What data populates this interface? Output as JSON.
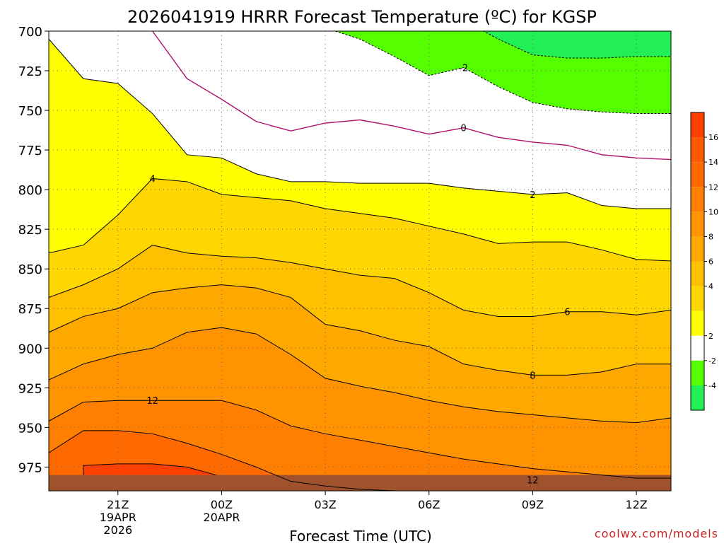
{
  "chart_data": {
    "type": "contour",
    "title": "2026041919 HRRR Forecast Temperature (ºC) for KGSP",
    "xlabel": "Forecast Time (UTC)",
    "ylabel": "",
    "watermark": "coolwx.com/models",
    "x_ticks": [
      {
        "label": "21Z",
        "sub": [
          "19APR",
          "2026"
        ],
        "hour": 2
      },
      {
        "label": "00Z",
        "sub": [
          "20APR"
        ],
        "hour": 5
      },
      {
        "label": "03Z",
        "sub": [],
        "hour": 8
      },
      {
        "label": "06Z",
        "sub": [],
        "hour": 11
      },
      {
        "label": "09Z",
        "sub": [],
        "hour": 14
      },
      {
        "label": "12Z",
        "sub": [],
        "hour": 17
      }
    ],
    "x_range_hours": [
      0,
      18
    ],
    "y_range_hpa": [
      700,
      990
    ],
    "y_inverted": true,
    "y_ticks": [
      700,
      725,
      750,
      775,
      800,
      825,
      850,
      875,
      900,
      925,
      950,
      975
    ],
    "grid": true,
    "hours": [
      0,
      1,
      2,
      3,
      4,
      5,
      6,
      7,
      8,
      9,
      10,
      11,
      12,
      13,
      14,
      15,
      16,
      17,
      18
    ],
    "contours": [
      {
        "level": -2,
        "label": "-2",
        "x_label_hour": 12,
        "dashed": true,
        "color": "#000000",
        "p": [
          null,
          null,
          null,
          null,
          null,
          null,
          null,
          693,
          698,
          705,
          716,
          728,
          723,
          735,
          745,
          749,
          751,
          752,
          752
        ]
      },
      {
        "level": -4,
        "label": "",
        "dashed": true,
        "color": "#000000",
        "p": [
          null,
          null,
          null,
          null,
          null,
          null,
          null,
          null,
          null,
          null,
          null,
          693,
          693,
          705,
          715,
          717,
          717,
          716,
          716
        ]
      },
      {
        "level": 0,
        "label": "0",
        "x_label_hour": 12,
        "dashed": false,
        "color": "#b0106e",
        "p": [
          null,
          null,
          693,
          700,
          730,
          743,
          757,
          763,
          758,
          756,
          760,
          765,
          761,
          767,
          770,
          772,
          778,
          780,
          781
        ]
      },
      {
        "level": 2,
        "label": "2",
        "x_label_hour": 14,
        "dashed": false,
        "color": "#000000",
        "p": [
          705,
          730,
          733,
          752,
          778,
          780,
          790,
          795,
          795,
          796,
          796,
          796,
          799,
          801,
          803,
          802,
          810,
          812,
          812
        ]
      },
      {
        "level": 4,
        "label": "4",
        "x_label_hour": 3,
        "dashed": false,
        "color": "#000000",
        "p": [
          840,
          835,
          816,
          793,
          795,
          803,
          805,
          807,
          812,
          815,
          818,
          823,
          828,
          834,
          833,
          833,
          838,
          844,
          845
        ]
      },
      {
        "level": 6,
        "label": "6",
        "x_label_hour": 15,
        "dashed": false,
        "color": "#000000",
        "p": [
          868,
          860,
          850,
          835,
          840,
          842,
          843,
          846,
          850,
          854,
          856,
          865,
          876,
          880,
          880,
          877,
          877,
          879,
          876
        ]
      },
      {
        "level": 8,
        "label": "8",
        "x_label_hour": 14,
        "dashed": false,
        "color": "#000000",
        "p": [
          890,
          880,
          875,
          865,
          862,
          860,
          862,
          868,
          885,
          889,
          895,
          899,
          910,
          914,
          917,
          917,
          915,
          910,
          910
        ]
      },
      {
        "level": 10,
        "label": "",
        "dashed": false,
        "color": "#000000",
        "p": [
          920,
          910,
          904,
          900,
          890,
          887,
          891,
          904,
          919,
          924,
          928,
          933,
          937,
          940,
          942,
          944,
          946,
          947,
          944
        ]
      },
      {
        "level": 12,
        "label": "12",
        "x_label_hour": 3,
        "dashed": false,
        "color": "#000000",
        "p": [
          946,
          934,
          933,
          933,
          933,
          933,
          939,
          949,
          954,
          958,
          962,
          966,
          970,
          973,
          976,
          978,
          980,
          982,
          982
        ]
      },
      {
        "level": 14,
        "label": "",
        "dashed": false,
        "color": "#000000",
        "p": [
          966,
          952,
          952,
          954,
          960,
          967,
          975,
          984,
          987,
          989,
          990,
          990,
          990,
          990,
          990,
          990,
          990,
          990,
          990
        ]
      }
    ],
    "bottom_contour_label": {
      "label": "12",
      "hour": 14
    },
    "colorbar": {
      "labels": [
        "16",
        "14",
        "12",
        "10",
        "8",
        "6",
        "4",
        "2",
        "-2",
        "-4"
      ],
      "bins": [
        {
          "color": "#ff4000",
          "level": 17
        },
        {
          "color": "#ff5a00",
          "level": 15
        },
        {
          "color": "#ff6a00",
          "level": 13
        },
        {
          "color": "#ff8000",
          "level": 11
        },
        {
          "color": "#ff9400",
          "level": 9
        },
        {
          "color": "#ffa800",
          "level": 7
        },
        {
          "color": "#ffc000",
          "level": 5
        },
        {
          "color": "#ffd700",
          "level": 3
        },
        {
          "color": "#ffff00",
          "level": 1
        },
        {
          "color": "#ffffff",
          "level": -1
        },
        {
          "color": "#55ff00",
          "level": -3
        },
        {
          "color": "#22ee55",
          "level": -5
        }
      ]
    },
    "fill": {
      "green_bright": "#55ff00",
      "green_dark": "#22ee55",
      "white": "#ffffff",
      "yellow": "#ffff00",
      "ground": "#a0522d",
      "line_color": "#000000",
      "zero_color": "#b0106e"
    }
  }
}
